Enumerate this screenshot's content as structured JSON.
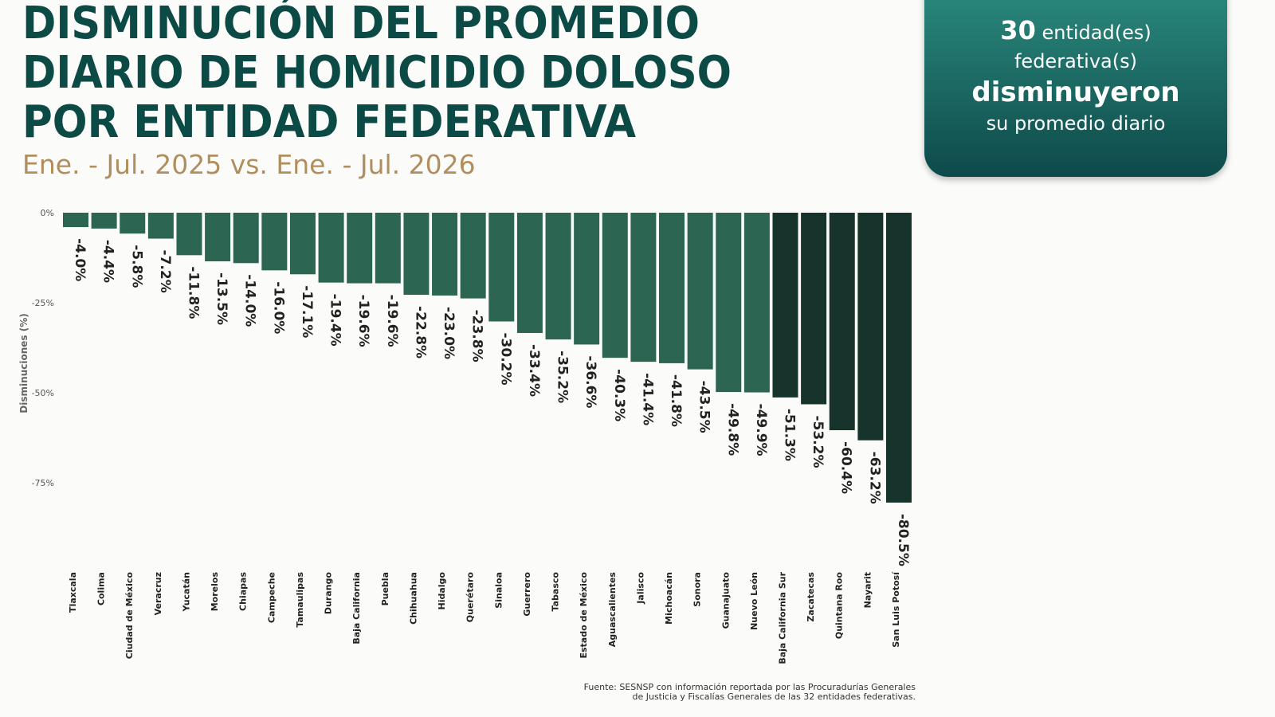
{
  "chart_data": {
    "type": "bar",
    "title": [
      "DISMINUCIÓN DEL PROMEDIO",
      "DIARIO DE HOMICIDIO DOLOSO",
      "POR ENTIDAD FEDERATIVA"
    ],
    "subtitle": "Ene. - Jul. 2025 vs. Ene. - Jul. 2026",
    "y_label": "Disminuciones (%)",
    "categories": [
      "Tlaxcala",
      "Colima",
      "Ciudad de México",
      "Veracruz",
      "Yucatán",
      "Morelos",
      "Chiapas",
      "Campeche",
      "Tamaulipas",
      "Durango",
      "Baja California",
      "Puebla",
      "Chihuahua",
      "Hidalgo",
      "Querétaro",
      "Sinaloa",
      "Guerrero",
      "Tabasco",
      "Estado de México",
      "Aguascalientes",
      "Jalisco",
      "Michoacán",
      "Sonora",
      "Guanajuato",
      "Nuevo León",
      "Baja California Sur",
      "Zacatecas",
      "Quintana Roo",
      "Nayarit",
      "San Luis Potosí"
    ],
    "values": [
      -4.0,
      -4.4,
      -5.8,
      -7.2,
      -11.8,
      -13.5,
      -14.0,
      -16.0,
      -17.1,
      -19.4,
      -19.6,
      -19.6,
      -22.8,
      -23.0,
      -23.8,
      -30.2,
      -33.4,
      -35.2,
      -36.6,
      -40.3,
      -41.4,
      -41.8,
      -43.5,
      -49.8,
      -49.9,
      -51.3,
      -53.2,
      -60.4,
      -63.2,
      -80.5
    ],
    "value_labels": [
      "-4.0%",
      "-4.4%",
      "-5.8%",
      "-7.2%",
      "-11.8%",
      "-13.5%",
      "-14.0%",
      "-16.0%",
      "-17.1%",
      "-19.4%",
      "-19.6%",
      "-19.6%",
      "-22.8%",
      "-23.0%",
      "-23.8%",
      "-30.2%",
      "-33.4%",
      "-35.2%",
      "-36.6%",
      "-40.3%",
      "-41.4%",
      "-41.8%",
      "-43.5%",
      "-49.8%",
      "-49.9%",
      "-51.3%",
      "-53.2%",
      "-60.4%",
      "-63.2%",
      "-80.5%"
    ],
    "colors": [
      "#2c6652",
      "#2c6652",
      "#2c6652",
      "#2c6652",
      "#2c6652",
      "#2c6652",
      "#2c6652",
      "#2c6652",
      "#2c6652",
      "#2c6652",
      "#2c6652",
      "#2c6652",
      "#2c6652",
      "#2c6652",
      "#2c6652",
      "#2c6652",
      "#2c6652",
      "#2c6652",
      "#2c6652",
      "#2c6652",
      "#2c6652",
      "#2c6652",
      "#2c6652",
      "#2c6652",
      "#2c6652",
      "#16342c",
      "#16342c",
      "#16342c",
      "#16342c",
      "#16342c"
    ],
    "ylim": [
      -82,
      0
    ],
    "yticks": [
      {
        "value": 0,
        "label": "0%"
      },
      {
        "value": -25,
        "label": "-25%"
      },
      {
        "value": -50,
        "label": "-50%"
      },
      {
        "value": -75,
        "label": "-75%"
      }
    ],
    "source": [
      "Fuente: SESNSP con información reportada por las Procuradurías Generales",
      "de Justicia y Fiscalías Generales de las 32 entidades federativas."
    ]
  },
  "callout": {
    "count": 30,
    "line1": "entidad(es)",
    "line2": "federativa(s)",
    "emphasis": "disminuyeron",
    "line3": "su promedio diario"
  }
}
